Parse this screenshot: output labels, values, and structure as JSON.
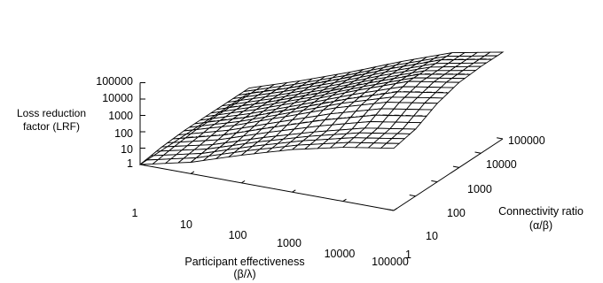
{
  "chart_data": {
    "type": "surface",
    "zlabel_lines": [
      "Loss reduction",
      "factor (LRF)"
    ],
    "xlabel_lines": [
      "Participant effectiveness",
      "(β/λ)"
    ],
    "ylabel_lines": [
      "Connectivity ratio",
      "(α/β)"
    ],
    "x_ticks": [
      "1",
      "10",
      "100",
      "1000",
      "10000",
      "100000"
    ],
    "y_ticks": [
      "1",
      "10",
      "100",
      "1000",
      "10000",
      "100000"
    ],
    "z_ticks": [
      "1",
      "10",
      "100",
      "1000",
      "10000",
      "100000"
    ],
    "x_range": [
      1,
      100000
    ],
    "y_range": [
      1,
      100000
    ],
    "z_range": [
      1,
      100000
    ],
    "x_scale": "log",
    "y_scale": "log",
    "z_scale": "log",
    "mesh": "wireframe",
    "contour_style": "dash-dot",
    "surface_samples": {
      "log10_x": [
        0,
        1,
        2,
        3,
        4,
        5
      ],
      "log10_y": [
        0,
        1,
        2,
        3,
        4,
        5
      ],
      "log10_z": [
        [
          0.0,
          0.2,
          0.3,
          0.3,
          0.3,
          0.3
        ],
        [
          0.7,
          0.9,
          1.2,
          1.3,
          1.3,
          1.3
        ],
        [
          1.7,
          1.9,
          2.3,
          2.4,
          2.4,
          2.4
        ],
        [
          2.6,
          2.8,
          3.4,
          3.6,
          3.6,
          3.6
        ],
        [
          3.3,
          3.6,
          4.3,
          4.7,
          4.7,
          4.7
        ],
        [
          3.8,
          4.1,
          4.8,
          5.2,
          5.3,
          5.3
        ]
      ]
    },
    "colors": {
      "mesh": "#000000",
      "background": "#ffffff"
    }
  }
}
